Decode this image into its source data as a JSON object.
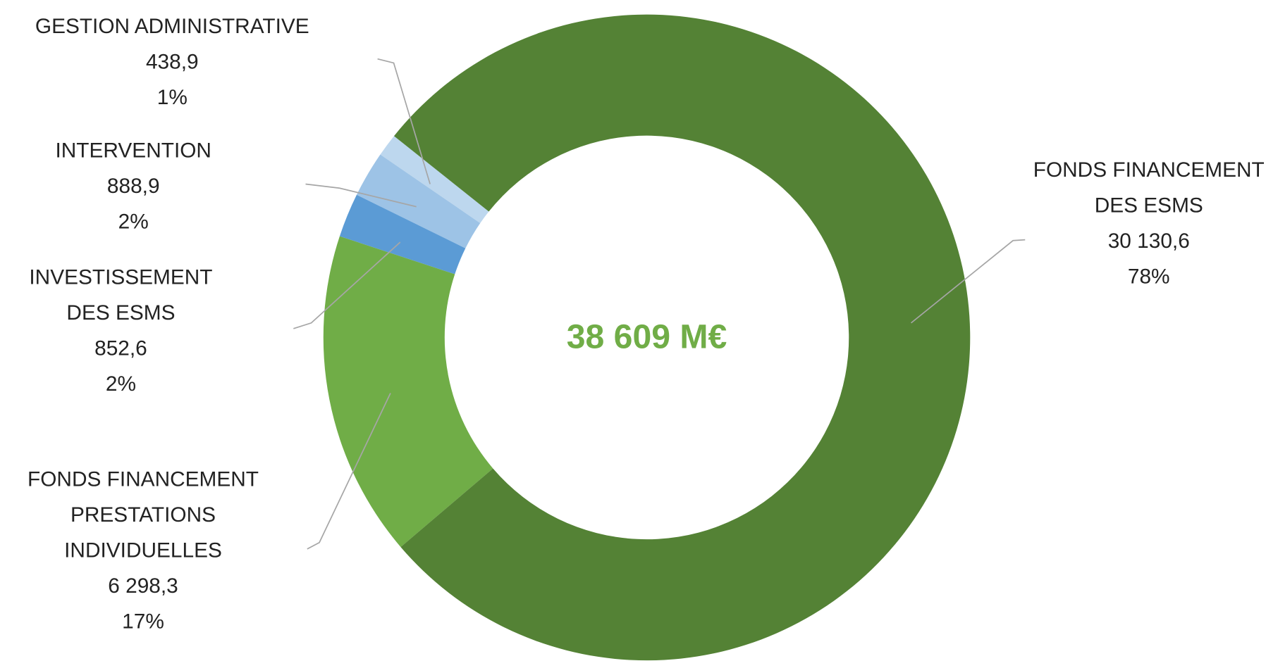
{
  "chart_data": {
    "type": "donut",
    "center_label": "38 609 M€",
    "categories": [
      "FONDS FINANCEMENT DES ESMS",
      "FONDS FINANCEMENT PRESTATIONS INDIVIDUELLES",
      "INVESTISSEMENT DES ESMS",
      "INTERVENTION",
      "GESTION ADMINISTRATIVE"
    ],
    "values": [
      30130.6,
      6298.3,
      852.6,
      888.9,
      438.9
    ],
    "value_labels": [
      "30 130,6",
      "6 298,3",
      "852,6",
      "888,9",
      "438,9"
    ],
    "percent_labels": [
      "78%",
      "17%",
      "2%",
      "2%",
      "1%"
    ],
    "colors": [
      "#548235",
      "#70ad47",
      "#5b9bd5",
      "#9dc3e6",
      "#bdd7ee"
    ]
  }
}
